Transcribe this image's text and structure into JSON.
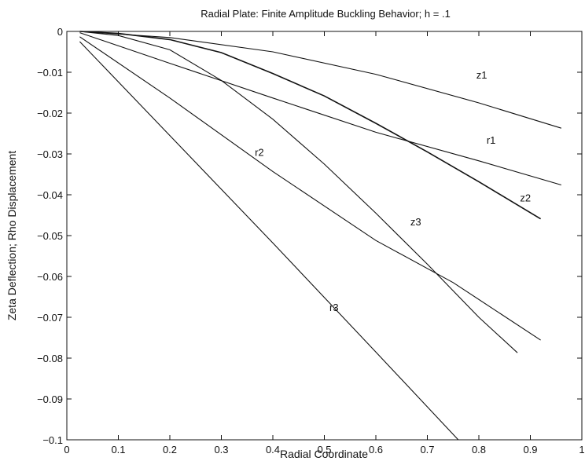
{
  "chart_data": {
    "type": "line",
    "title": "Radial Plate: Finite Amplitude Buckling Behavior; h = .1",
    "xlabel": "Radial Coordinate",
    "ylabel": "Zeta Deflection; Rho Displacement",
    "xlim": [
      0,
      1
    ],
    "ylim": [
      -0.1,
      0
    ],
    "x_ticks": [
      0,
      0.1,
      0.2,
      0.3,
      0.4,
      0.5,
      0.6,
      0.7,
      0.8,
      0.9,
      1
    ],
    "x_tick_labels": [
      "0",
      "0.1",
      "0.2",
      "0.3",
      "0.4",
      "0.5",
      "0.6",
      "0.7",
      "0.8",
      "0.9",
      "1"
    ],
    "y_ticks": [
      0,
      -0.01,
      -0.02,
      -0.03,
      -0.04,
      -0.05,
      -0.06,
      -0.07,
      -0.08,
      -0.09,
      -0.1
    ],
    "y_tick_labels": [
      "0",
      "−0.01",
      "−0.02",
      "−0.03",
      "−0.04",
      "−0.05",
      "−0.06",
      "−0.07",
      "−0.08",
      "−0.09",
      "−0.1"
    ],
    "grid": false,
    "line_color": "#111111",
    "series": [
      {
        "name": "z1",
        "points": [
          [
            0.025,
            0
          ],
          [
            0.2,
            -0.0015
          ],
          [
            0.4,
            -0.005
          ],
          [
            0.6,
            -0.0105
          ],
          [
            0.8,
            -0.0175
          ],
          [
            0.96,
            -0.0237
          ]
        ],
        "label_pos": [
          0.795,
          -0.0115
        ]
      },
      {
        "name": "r1",
        "points": [
          [
            0.025,
            -0.0003
          ],
          [
            0.2,
            -0.0078
          ],
          [
            0.4,
            -0.0163
          ],
          [
            0.6,
            -0.0247
          ],
          [
            0.8,
            -0.0317
          ],
          [
            0.96,
            -0.0376
          ]
        ],
        "label_pos": [
          0.815,
          -0.0275
        ]
      },
      {
        "name": "z2",
        "points": [
          [
            0.025,
            0
          ],
          [
            0.1,
            -0.0005
          ],
          [
            0.2,
            -0.002
          ],
          [
            0.3,
            -0.0052
          ],
          [
            0.4,
            -0.0103
          ],
          [
            0.5,
            -0.0158
          ],
          [
            0.6,
            -0.0225
          ],
          [
            0.7,
            -0.0295
          ],
          [
            0.8,
            -0.0368
          ],
          [
            0.92,
            -0.0459
          ]
        ],
        "label_pos": [
          0.88,
          -0.0416
        ]
      },
      {
        "name": "r2",
        "points": [
          [
            0.025,
            -0.0013
          ],
          [
            0.2,
            -0.0163
          ],
          [
            0.4,
            -0.0343
          ],
          [
            0.6,
            -0.0512
          ],
          [
            0.75,
            -0.0615
          ],
          [
            0.92,
            -0.0756
          ]
        ],
        "label_pos": [
          0.365,
          -0.0305
        ]
      },
      {
        "name": "z3",
        "points": [
          [
            0.025,
            0
          ],
          [
            0.1,
            -0.001
          ],
          [
            0.2,
            -0.0045
          ],
          [
            0.3,
            -0.012
          ],
          [
            0.4,
            -0.0215
          ],
          [
            0.5,
            -0.0325
          ],
          [
            0.6,
            -0.0445
          ],
          [
            0.7,
            -0.057
          ],
          [
            0.8,
            -0.07
          ],
          [
            0.875,
            -0.0787
          ]
        ],
        "label_pos": [
          0.667,
          -0.0475
        ]
      },
      {
        "name": "r3",
        "points": [
          [
            0.025,
            -0.0025
          ],
          [
            0.2,
            -0.0255
          ],
          [
            0.4,
            -0.0518
          ],
          [
            0.6,
            -0.0785
          ],
          [
            0.76,
            -0.1
          ]
        ],
        "label_pos": [
          0.51,
          -0.0685
        ]
      }
    ]
  }
}
